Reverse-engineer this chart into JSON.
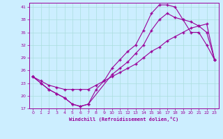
{
  "xlabel": "Windchill (Refroidissement éolien,°C)",
  "bg_color": "#cceeff",
  "line_color": "#990099",
  "grid_color": "#aadddd",
  "xlim": [
    -0.5,
    23.5
  ],
  "ylim": [
    17,
    42
  ],
  "yticks": [
    17,
    20,
    23,
    26,
    29,
    32,
    35,
    38,
    41
  ],
  "xticks": [
    0,
    1,
    2,
    3,
    4,
    5,
    6,
    7,
    8,
    9,
    10,
    11,
    12,
    13,
    14,
    15,
    16,
    17,
    18,
    19,
    20,
    21,
    22,
    23
  ],
  "line1_x": [
    0,
    1,
    2,
    3,
    4,
    5,
    6,
    7,
    8,
    9,
    10,
    11,
    12,
    13,
    14,
    15,
    16,
    17,
    18,
    19,
    20,
    21,
    22,
    23
  ],
  "line1_y": [
    24.5,
    23.0,
    21.5,
    20.5,
    19.5,
    18.0,
    17.5,
    18.0,
    21.5,
    23.5,
    26.5,
    28.5,
    30.5,
    32.0,
    35.5,
    39.5,
    41.5,
    41.5,
    41.0,
    38.0,
    35.0,
    35.0,
    32.0,
    28.5
  ],
  "line2_x": [
    0,
    1,
    2,
    3,
    4,
    5,
    6,
    7,
    10,
    11,
    12,
    13,
    14,
    15,
    16,
    17,
    18,
    19,
    20,
    21,
    22,
    23
  ],
  "line2_y": [
    24.5,
    23.0,
    21.5,
    20.5,
    19.5,
    18.0,
    17.5,
    18.0,
    25.0,
    26.5,
    28.0,
    30.0,
    32.0,
    35.5,
    38.0,
    39.5,
    38.5,
    38.0,
    37.5,
    36.5,
    35.0,
    28.5
  ],
  "line3_x": [
    0,
    1,
    2,
    3,
    4,
    5,
    6,
    7,
    8,
    9,
    10,
    11,
    12,
    13,
    14,
    15,
    16,
    17,
    18,
    19,
    20,
    21,
    22,
    23
  ],
  "line3_y": [
    24.5,
    23.5,
    22.5,
    22.0,
    21.5,
    21.5,
    21.5,
    21.5,
    22.5,
    23.5,
    24.5,
    25.5,
    26.5,
    27.5,
    29.0,
    30.5,
    31.5,
    33.0,
    34.0,
    35.0,
    36.0,
    36.5,
    37.0,
    28.5
  ]
}
